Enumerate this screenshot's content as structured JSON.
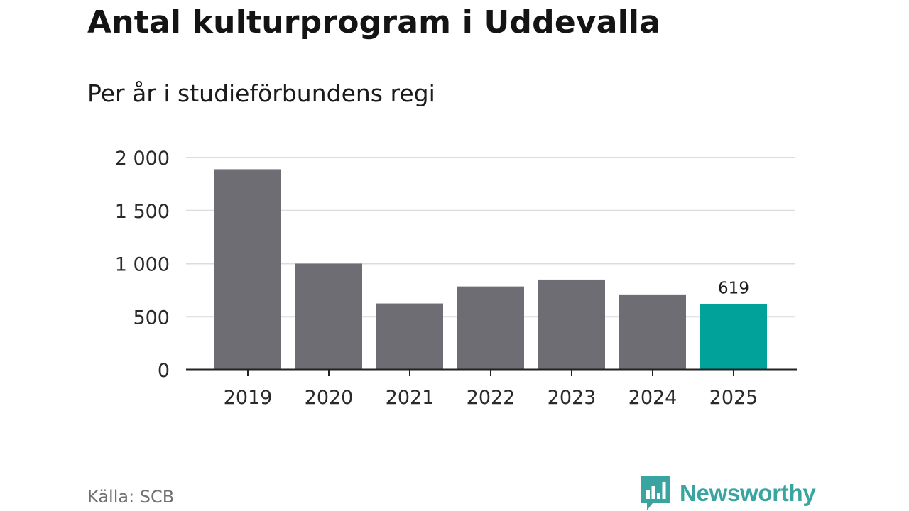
{
  "header": {
    "title": "Antal kulturprogram i Uddevalla",
    "subtitle": "Per år i studieförbundens regi"
  },
  "footer": {
    "source": "Källa: SCB",
    "brand": "Newsworthy",
    "brand_icon": "bar-chart-speech-bubble-icon",
    "brand_color": "#3aa5a0"
  },
  "chart_data": {
    "type": "bar",
    "title": "Antal kulturprogram i Uddevalla",
    "subtitle": "Per år i studieförbundens regi",
    "categories": [
      "2019",
      "2020",
      "2021",
      "2022",
      "2023",
      "2024",
      "2025"
    ],
    "values": [
      1890,
      1000,
      625,
      785,
      850,
      710,
      619
    ],
    "highlight_index": 6,
    "data_labels": [
      {
        "index": 6,
        "text": "619"
      }
    ],
    "ylim": [
      0,
      2000
    ],
    "yticks": [
      0,
      500,
      1000,
      1500,
      2000
    ],
    "ytick_labels": [
      "0",
      "500",
      "1 000",
      "1 500",
      "2 000"
    ],
    "xlabel": "",
    "ylabel": "",
    "grid": true,
    "colors": {
      "bar": "#6e6d73",
      "highlight": "#00a29a",
      "grid": "#dcdcdc",
      "axis": "#222222"
    }
  }
}
